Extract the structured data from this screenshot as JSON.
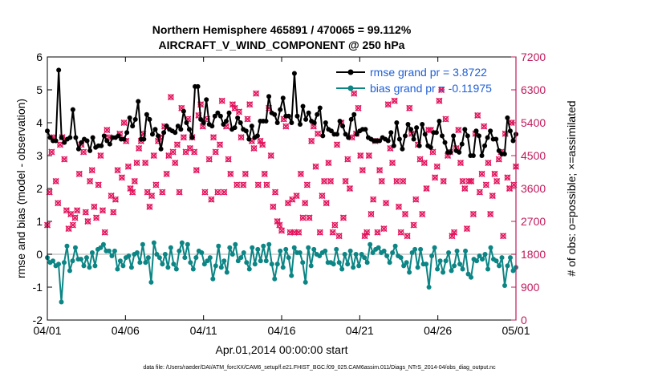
{
  "chart_data": {
    "type": "line",
    "title": "Northern Hemisphere 465891 / 470065 = 99.112%",
    "subtitle": "AIRCRAFT_V_WIND_COMPONENT @ 250 hPa",
    "xlabel": "Apr.01,2014 00:00:00 start",
    "ylabel_left": "rmse and bias (model - observation)",
    "ylabel_right": "# of obs: o=possible; ×=assimilated",
    "x_ticks": [
      "04/01",
      "04/06",
      "04/11",
      "04/16",
      "04/21",
      "04/26",
      "05/01"
    ],
    "ylim_left": [
      -2,
      6
    ],
    "y_ticks_left": [
      "-2",
      "-1",
      "0",
      "1",
      "2",
      "3",
      "4",
      "5",
      "6"
    ],
    "ylim_right": [
      0,
      7200
    ],
    "y_ticks_right": [
      "0",
      "900",
      "1800",
      "2700",
      "3600",
      "4500",
      "5400",
      "6300",
      "7200"
    ],
    "xlim_days": [
      0,
      30
    ],
    "zero_line": 0,
    "legend": {
      "rmse": "rmse grand pr = 3.8722",
      "bias": "bias grand pr = -0.11975"
    },
    "colors": {
      "rmse": "#000000",
      "bias": "#0c8585",
      "obs": "#e3155e",
      "right_axis": "#c2185b",
      "legend_text": "#1f5fd6",
      "zero_line": "#c8c8c8"
    },
    "series": [
      {
        "name": "rmse",
        "values": [
          3.75,
          3.55,
          3.45,
          3.45,
          5.6,
          3.55,
          3.4,
          3.5,
          3.55,
          4.4,
          3.55,
          3.2,
          3.4,
          3.5,
          3.45,
          3.15,
          3.55,
          3.25,
          3.3,
          3.3,
          3.6,
          3.45,
          3.35,
          3.55,
          3.55,
          3.6,
          3.5,
          3.5,
          3.7,
          4.15,
          3.9,
          4.1,
          4.65,
          3.5,
          3.5,
          4.25,
          4.1,
          3.65,
          3.8,
          3.6,
          3.2,
          3.7,
          3.9,
          3.8,
          3.75,
          3.7,
          3.9,
          3.8,
          4.35,
          4.0,
          3.8,
          3.55,
          5.1,
          5.1,
          4.1,
          4.0,
          4.7,
          3.95,
          3.9,
          4.2,
          4.3,
          4.2,
          3.95,
          4.05,
          4.3,
          3.8,
          3.85,
          4.15,
          4.0,
          3.8,
          3.75,
          3.5,
          3.9,
          3.55,
          3.6,
          4.05,
          4.05,
          4.05,
          4.8,
          4.3,
          4.25,
          4.0,
          4.4,
          4.75,
          4.2,
          4.2,
          4.0,
          5.5,
          4.2,
          3.95,
          4.5,
          4.1,
          4.3,
          4.05,
          4.0,
          4.25,
          4.45,
          3.6,
          4.0,
          3.8,
          3.75,
          3.65,
          3.65,
          4.05,
          3.9,
          3.65,
          3.55,
          4.1,
          4.25,
          3.65,
          3.75,
          3.8,
          3.8,
          3.55,
          3.5,
          3.45,
          3.45,
          3.45,
          3.55,
          3.5,
          3.45,
          3.7,
          3.3,
          4.0,
          3.5,
          3.2,
          3.6,
          3.95,
          3.8,
          3.5,
          3.85,
          3.3,
          3.95,
          3.65,
          3.3,
          3.25,
          3.7,
          3.7,
          4.05,
          3.6,
          3.4,
          3.1,
          3.1,
          3.6,
          3.15,
          3.1,
          3.35,
          3.8,
          3.6,
          3.0,
          3.0,
          3.75,
          3.6,
          3.0,
          3.3,
          3.55,
          3.75,
          3.5,
          3.5,
          3.15,
          3.05,
          3.05,
          4.15,
          3.75,
          3.45,
          3.65
        ]
      },
      {
        "name": "bias",
        "values": [
          -0.1,
          -0.25,
          -0.2,
          -0.35,
          -0.3,
          -1.45,
          -0.25,
          0.25,
          -0.5,
          -0.2,
          0.2,
          -0.15,
          -0.15,
          -0.35,
          -0.1,
          -0.4,
          0.05,
          -0.35,
          0.15,
          0.2,
          0.3,
          0.1,
          0.1,
          -0.05,
          0.1,
          -0.45,
          -0.2,
          -0.35,
          -0.1,
          -0.05,
          -0.4,
          0.0,
          0.05,
          -0.25,
          0.3,
          -0.25,
          -0.1,
          -0.85,
          0.35,
          0.0,
          -0.1,
          -0.3,
          0.0,
          -0.4,
          0.2,
          -0.3,
          -0.45,
          0.1,
          0.35,
          -0.1,
          0.3,
          -0.25,
          -0.45,
          -0.1,
          0.1,
          0.05,
          -0.3,
          -0.2,
          -0.1,
          -0.75,
          -0.35,
          0.25,
          -0.4,
          -0.2,
          -0.55,
          0.2,
          0.0,
          0.3,
          -0.2,
          -0.1,
          0.05,
          -0.25,
          -0.45,
          0.2,
          -0.3,
          0.15,
          -0.2,
          0.25,
          -0.2,
          0.3,
          -0.3,
          -0.75,
          -0.3,
          0.1,
          -0.4,
          0.15,
          -0.1,
          -0.65,
          0.2,
          0.05,
          0.05,
          -0.25,
          -0.85,
          0.2,
          -0.35,
          0.15,
          0.0,
          -0.05,
          0.05,
          0.1,
          -0.25,
          -0.25,
          -0.3,
          0.15,
          -0.25,
          -0.45,
          0.0,
          -0.3,
          0.1,
          -0.4,
          0.0,
          -0.35,
          0.0,
          -0.1,
          -0.25,
          0.3,
          0.05,
          0.15,
          0.2,
          0.05,
          0.1,
          -0.05,
          -0.25,
          0.05,
          0.25,
          -0.05,
          -0.1,
          -0.35,
          -0.25,
          -0.55,
          0.05,
          0.15,
          -0.4,
          0.15,
          -0.3,
          -0.3,
          -1.0,
          -0.05,
          0.2,
          -0.45,
          -0.2,
          -0.55,
          -0.2,
          0.05,
          -0.5,
          -0.35,
          0.1,
          -0.3,
          -0.45,
          0.1,
          -0.6,
          -0.7,
          -0.15,
          -0.2,
          -0.05,
          -0.15,
          0.0,
          -0.45,
          0.2,
          -0.15,
          -0.2,
          -0.35,
          -0.1,
          -0.95,
          -0.35,
          -0.1,
          -0.5,
          -0.4
        ]
      },
      {
        "name": "obs_count",
        "values": [
          2600,
          3500,
          4600,
          5000,
          3800,
          3200,
          4800,
          5000,
          4400,
          3000,
          2500,
          2900,
          2600,
          2800,
          3000,
          4000,
          4800,
          4600,
          2950,
          2700,
          3800,
          4100,
          3100,
          2800,
          3700,
          4500,
          3000,
          2400,
          5200,
          5000,
          3400,
          2950,
          3300,
          4100,
          5100,
          3900,
          5400,
          4900,
          4200,
          3600,
          3500,
          3800,
          4300,
          4700,
          4900,
          5100,
          4300,
          3500,
          3100,
          3400,
          4500,
          3700,
          4900,
          5000,
          3500,
          5300,
          4000,
          4500,
          6100,
          4600,
          4300,
          4800,
          3500,
          5800,
          5000,
          4600,
          5500,
          4700,
          5000,
          4600,
          4100,
          5600,
          5900,
          5300,
          3500,
          5500,
          4400,
          3300,
          5000,
          4600,
          3500,
          4800,
          6000,
          3500,
          5300,
          4400,
          4000,
          5900,
          5800,
          3700,
          5700,
          5000,
          3700,
          4000,
          5500,
          5900,
          4900,
          4700,
          6200,
          3700,
          4900,
          4800,
          4000,
          3700,
          5800,
          4500,
          3100,
          3500,
          2700,
          2600,
          2450,
          5500,
          5300,
          3200,
          2400,
          3300,
          2400,
          3400,
          2400,
          4000,
          2800,
          3200,
          3700,
          2800,
          4900,
          5300,
          4200,
          5100,
          2400,
          3400,
          3800,
          3200,
          4300,
          3800,
          2400,
          2600,
          4800,
          2300,
          5400,
          2800,
          3800,
          4400,
          3600,
          5000,
          6200,
          5100,
          5800,
          4500,
          4100,
          2300,
          2400,
          4500,
          2900,
          3300,
          4900,
          2400,
          4100,
          3800,
          2500,
          3200,
          5900,
          4700,
          4300,
          6000,
          3800,
          3100,
          2400,
          3800,
          2900,
          2300,
          5800,
          5100,
          2600,
          3300,
          4800,
          4400,
          2900,
          4300,
          3600,
          5200,
          5200,
          4600,
          3900,
          4200,
          6000,
          6300,
          3800,
          5500,
          4500,
          4600,
          2300,
          2400,
          4700,
          5200,
          4300,
          3800,
          3600,
          2500,
          3800,
          3800,
          2900,
          5100,
          5600,
          3500,
          4000,
          5300,
          3700,
          4300,
          2900,
          3400,
          4000,
          3800,
          4400,
          4600,
          2300,
          5100,
          3900,
          3600,
          5400,
          3700,
          4200
        ]
      }
    ]
  },
  "footer": "data file: /Users/raeder/DAI/ATM_forcXX/CAM6_setup/f.e21.FHIST_BGC.f09_025.CAM6assim.011/Diags_NTrS_2014-04/obs_diag_output.nc"
}
